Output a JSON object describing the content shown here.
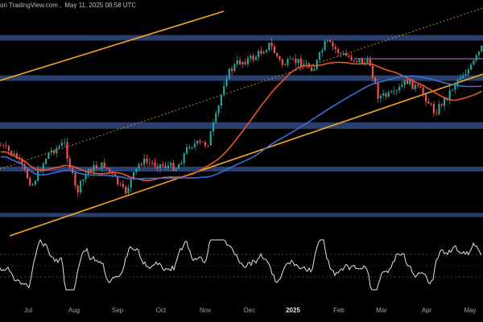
{
  "header": {
    "source": "on TradingView.com",
    "date": "May 11, 2025 08:58 UTC"
  },
  "colors": {
    "background": "#000000",
    "zone": "#2a3f6e",
    "candle_up": "#26a69a",
    "candle_down": "#ef5350",
    "ma_short": "#e8562a",
    "ma_long": "#3b6fd4",
    "trendline": "#f5a623",
    "rsi": "#dfe3ea",
    "resistance_line": "#8a4f8a"
  },
  "chart_data": [
    {
      "type": "candlestick",
      "title": "",
      "x_ticks": [
        "Jul",
        "Aug",
        "Sep",
        "Oct",
        "Nov",
        "Dec",
        "2025",
        "Feb",
        "Mar",
        "Apr",
        "May"
      ],
      "x_ticks_bold": [
        "2025"
      ],
      "grid": false,
      "series": [
        {
          "kind": "candles",
          "approx_close_shape": [
            62,
            57,
            54,
            65,
            59,
            49,
            60,
            54,
            58,
            63,
            70,
            88,
            97,
            94,
            102,
            97,
            106,
            99,
            92,
            82,
            84,
            92,
            82,
            85,
            95,
            104
          ]
        },
        {
          "kind": "moving_average",
          "color": "#e8562a"
        },
        {
          "kind": "moving_average",
          "color": "#3b6fd4"
        },
        {
          "kind": "trendline",
          "color": "#f5a623",
          "style": "solid"
        },
        {
          "kind": "trendline",
          "color": "#f5a623",
          "style": "solid"
        },
        {
          "kind": "trendline",
          "color": "#f5a623",
          "style": "dotted"
        }
      ],
      "horizontal_zones_count": 5
    },
    {
      "type": "line",
      "title": "",
      "x_ticks": [
        "Jul",
        "Aug",
        "Sep",
        "Oct",
        "Nov",
        "Dec",
        "2025",
        "Feb",
        "Mar",
        "Apr",
        "May"
      ],
      "series": [
        {
          "kind": "oscillator",
          "color": "#dfe3ea"
        }
      ],
      "grid": false
    }
  ]
}
